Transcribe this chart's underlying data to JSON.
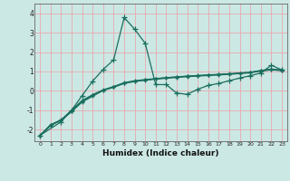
{
  "xlabel": "Humidex (Indice chaleur)",
  "background_color": "#cce8e4",
  "grid_color": "#e8a8b0",
  "line_color": "#1a6e5e",
  "xlim": [
    -0.5,
    23.5
  ],
  "ylim": [
    -2.6,
    4.5
  ],
  "xticks": [
    0,
    1,
    2,
    3,
    4,
    5,
    6,
    7,
    8,
    9,
    10,
    11,
    12,
    13,
    14,
    15,
    16,
    17,
    18,
    19,
    20,
    21,
    22,
    23
  ],
  "yticks": [
    -2,
    -1,
    0,
    1,
    2,
    3,
    4
  ],
  "line1_x": [
    0,
    1,
    2,
    3,
    4,
    5,
    6,
    7,
    8,
    9,
    10,
    11,
    12,
    13,
    14,
    15,
    16,
    17,
    18,
    19,
    20,
    21,
    22,
    23
  ],
  "line1_y": [
    -2.3,
    -1.75,
    -1.5,
    -1.0,
    -0.5,
    -0.2,
    0.05,
    0.22,
    0.42,
    0.52,
    0.58,
    0.63,
    0.68,
    0.72,
    0.76,
    0.79,
    0.82,
    0.85,
    0.88,
    0.92,
    0.96,
    1.05,
    1.12,
    1.08
  ],
  "line2_x": [
    0,
    1,
    2,
    3,
    4,
    5,
    6,
    7,
    8,
    9,
    10,
    11,
    12,
    13,
    14,
    15,
    16,
    17,
    18,
    19,
    20,
    21,
    22,
    23
  ],
  "line2_y": [
    -2.3,
    -1.8,
    -1.52,
    -1.08,
    -0.58,
    -0.28,
    0.02,
    0.18,
    0.38,
    0.48,
    0.55,
    0.6,
    0.65,
    0.69,
    0.73,
    0.76,
    0.79,
    0.82,
    0.85,
    0.89,
    0.93,
    1.02,
    1.08,
    1.04
  ],
  "line3_x": [
    0,
    2,
    3,
    4,
    5,
    6,
    7,
    8,
    9,
    10,
    11,
    12,
    13,
    14,
    15,
    16,
    17,
    18,
    19,
    20,
    21,
    22,
    23
  ],
  "line3_y": [
    -2.3,
    -1.6,
    -1.0,
    -0.25,
    0.5,
    1.1,
    1.6,
    3.78,
    3.18,
    2.45,
    0.32,
    0.32,
    -0.12,
    -0.18,
    0.08,
    0.28,
    0.38,
    0.52,
    0.66,
    0.78,
    0.92,
    1.32,
    1.08
  ],
  "line4_x": [
    0,
    1,
    2,
    3,
    4,
    5,
    6,
    7,
    8,
    9,
    10,
    11,
    12,
    13,
    14,
    15,
    16,
    17,
    18,
    19,
    20,
    21,
    22,
    23
  ],
  "line4_y": [
    -2.3,
    -1.77,
    -1.51,
    -1.04,
    -0.54,
    -0.24,
    0.03,
    0.2,
    0.4,
    0.5,
    0.56,
    0.62,
    0.67,
    0.71,
    0.75,
    0.78,
    0.81,
    0.84,
    0.87,
    0.91,
    0.95,
    1.04,
    1.1,
    1.06
  ]
}
